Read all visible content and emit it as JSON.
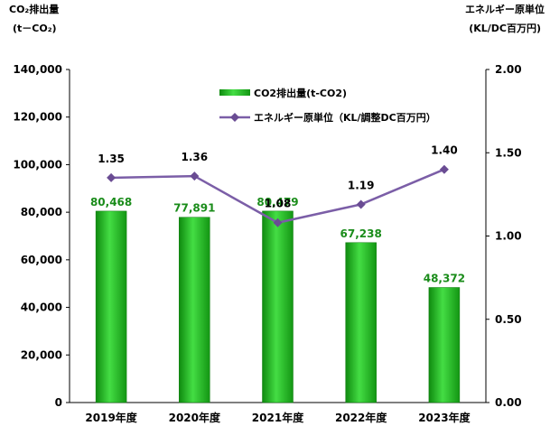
{
  "chart_data": {
    "type": "bar",
    "categories": [
      "2019年度",
      "2020年度",
      "2021年度",
      "2022年度",
      "2023年度"
    ],
    "series": [
      {
        "name": "CO2排出量(t-CO2)",
        "type": "bar",
        "axis": "left",
        "values": [
          80468,
          77891,
          80479,
          67238,
          48372
        ],
        "labels": [
          "80,468",
          "77,891",
          "80,479",
          "67,238",
          "48,372"
        ]
      },
      {
        "name": "エネルギー原単位（KL/調整DC百万円）",
        "type": "line",
        "axis": "right",
        "values": [
          1.35,
          1.36,
          1.08,
          1.19,
          1.4
        ],
        "labels": [
          "1.35",
          "1.36",
          "1.08",
          "1.19",
          "1.40"
        ]
      }
    ],
    "y_left": {
      "title": "CO₂排出量",
      "unit": "(t－CO₂)",
      "ylim": [
        0,
        140000
      ],
      "ticks": [
        "0",
        "20,000",
        "40,000",
        "60,000",
        "80,000",
        "100,000",
        "120,000",
        "140,000"
      ]
    },
    "y_right": {
      "title": "エネルギー原単位",
      "unit": "(KL/DC百万円)",
      "ylim": [
        0,
        2.0
      ],
      "ticks": [
        "0.00",
        "0.50",
        "1.00",
        "1.50",
        "2.00"
      ]
    },
    "legend_placement": "top-center",
    "grid": false,
    "colors": {
      "bar": "#22bb22",
      "bar_label": "#1a8c1a",
      "line": "#7b5ea7",
      "marker": "#6a4c93"
    }
  }
}
